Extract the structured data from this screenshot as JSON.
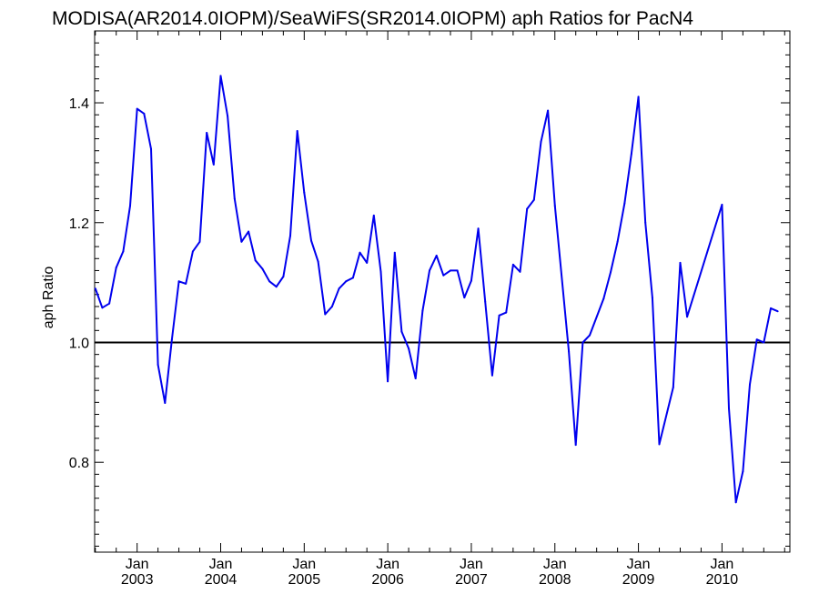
{
  "chart_data": {
    "type": "line",
    "title": "MODISA(AR2014.0IOPM)/SeaWiFS(SR2014.0IOPM)  aph Ratios for PacN4",
    "xlabel": "",
    "ylabel": "aph Ratio",
    "xlim": [
      "2002-07",
      "2010-11"
    ],
    "ylim": [
      0.65,
      1.52
    ],
    "x_tick_labels": [
      {
        "month": "Jan",
        "year": "2003",
        "date": "2003-01"
      },
      {
        "month": "Jan",
        "year": "2004",
        "date": "2004-01"
      },
      {
        "month": "Jan",
        "year": "2005",
        "date": "2005-01"
      },
      {
        "month": "Jan",
        "year": "2006",
        "date": "2006-01"
      },
      {
        "month": "Jan",
        "year": "2007",
        "date": "2007-01"
      },
      {
        "month": "Jan",
        "year": "2008",
        "date": "2008-01"
      },
      {
        "month": "Jan",
        "year": "2009",
        "date": "2009-01"
      },
      {
        "month": "Jan",
        "year": "2010",
        "date": "2010-01"
      }
    ],
    "y_ticks": [
      0.8,
      1.0,
      1.2,
      1.4
    ],
    "y_tick_labels": [
      "0.8",
      "1.0",
      "1.2",
      "1.4"
    ],
    "reference_line": {
      "y": 1.0,
      "color": "#000000"
    },
    "grid": false,
    "series": [
      {
        "color": "#0000ee",
        "points": [
          [
            "2002-07",
            1.09
          ],
          [
            "2002-08",
            1.058
          ],
          [
            "2002-09",
            1.065
          ],
          [
            "2002-10",
            1.125
          ],
          [
            "2002-11",
            1.152
          ],
          [
            "2002-12",
            1.228
          ],
          [
            "2003-01",
            1.39
          ],
          [
            "2003-02",
            1.382
          ],
          [
            "2003-03",
            1.323
          ],
          [
            "2003-04",
            0.963
          ],
          [
            "2003-05",
            0.899
          ],
          [
            "2003-06",
            1.005
          ],
          [
            "2003-07",
            1.102
          ],
          [
            "2003-08",
            1.098
          ],
          [
            "2003-09",
            1.152
          ],
          [
            "2003-10",
            1.168
          ],
          [
            "2003-11",
            1.35
          ],
          [
            "2003-12",
            1.297
          ],
          [
            "2004-01",
            1.445
          ],
          [
            "2004-02",
            1.378
          ],
          [
            "2004-03",
            1.24
          ],
          [
            "2004-04",
            1.168
          ],
          [
            "2004-05",
            1.185
          ],
          [
            "2004-06",
            1.137
          ],
          [
            "2004-07",
            1.123
          ],
          [
            "2004-08",
            1.102
          ],
          [
            "2004-09",
            1.093
          ],
          [
            "2004-10",
            1.11
          ],
          [
            "2004-11",
            1.178
          ],
          [
            "2004-12",
            1.353
          ],
          [
            "2005-01",
            1.25
          ],
          [
            "2005-02",
            1.17
          ],
          [
            "2005-03",
            1.135
          ],
          [
            "2005-04",
            1.047
          ],
          [
            "2005-05",
            1.06
          ],
          [
            "2005-06",
            1.09
          ],
          [
            "2005-07",
            1.102
          ],
          [
            "2005-08",
            1.108
          ],
          [
            "2005-09",
            1.15
          ],
          [
            "2005-10",
            1.133
          ],
          [
            "2005-11",
            1.212
          ],
          [
            "2005-12",
            1.118
          ],
          [
            "2006-01",
            0.935
          ],
          [
            "2006-02",
            1.15
          ],
          [
            "2006-03",
            1.018
          ],
          [
            "2006-04",
            0.99
          ],
          [
            "2006-05",
            0.94
          ],
          [
            "2006-06",
            1.053
          ],
          [
            "2006-07",
            1.12
          ],
          [
            "2006-08",
            1.145
          ],
          [
            "2006-09",
            1.112
          ],
          [
            "2006-10",
            1.12
          ],
          [
            "2006-11",
            1.12
          ],
          [
            "2006-12",
            1.075
          ],
          [
            "2007-01",
            1.103
          ],
          [
            "2007-02",
            1.19
          ],
          [
            "2007-03",
            1.068
          ],
          [
            "2007-04",
            0.945
          ],
          [
            "2007-05",
            1.045
          ],
          [
            "2007-06",
            1.05
          ],
          [
            "2007-07",
            1.13
          ],
          [
            "2007-08",
            1.118
          ],
          [
            "2007-09",
            1.223
          ],
          [
            "2007-10",
            1.238
          ],
          [
            "2007-11",
            1.335
          ],
          [
            "2007-12",
            1.387
          ],
          [
            "2008-01",
            1.228
          ],
          [
            "2008-03",
            0.985
          ],
          [
            "2008-04",
            0.829
          ],
          [
            "2008-05",
            1.0
          ],
          [
            "2008-06",
            1.012
          ],
          [
            "2008-08",
            1.073
          ],
          [
            "2008-09",
            1.117
          ],
          [
            "2008-10",
            1.168
          ],
          [
            "2008-11",
            1.232
          ],
          [
            "2008-12",
            1.315
          ],
          [
            "2009-01",
            1.41
          ],
          [
            "2009-02",
            1.2
          ],
          [
            "2009-03",
            1.075
          ],
          [
            "2009-04",
            0.83
          ],
          [
            "2009-06",
            0.925
          ],
          [
            "2009-07",
            1.133
          ],
          [
            "2009-08",
            1.043
          ],
          [
            "2010-01",
            1.23
          ],
          [
            "2010-02",
            0.89
          ],
          [
            "2010-03",
            0.733
          ],
          [
            "2010-04",
            0.785
          ],
          [
            "2010-05",
            0.93
          ],
          [
            "2010-06",
            1.005
          ],
          [
            "2010-07",
            1.0
          ],
          [
            "2010-08",
            1.057
          ],
          [
            "2010-09",
            1.052
          ]
        ]
      }
    ]
  }
}
